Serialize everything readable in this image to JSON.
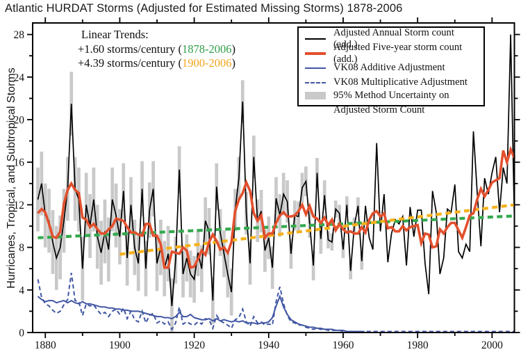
{
  "chart_data": {
    "type": "line",
    "title": "Atlantic HURDAT Storms (Adjusted for Estimated Missing Storms) 1878-2006",
    "ylabel": "Hurricanes, Tropical, and Subtropical Storms",
    "xlabel": "",
    "grid": false,
    "legend_position": "top-right",
    "x_axis": {
      "range": [
        1876.6,
        2006
      ],
      "major_ticks": [
        1880,
        1900,
        1920,
        1940,
        1960,
        1980,
        2000
      ],
      "minor_ticks": [
        1890,
        1910,
        1930,
        1950,
        1970,
        1990
      ]
    },
    "y_axis": {
      "range": [
        0,
        29.1
      ],
      "major_ticks": [
        0,
        4,
        8,
        12,
        16,
        20,
        24,
        28
      ],
      "minor_ticks": [
        2,
        6,
        10,
        14,
        18,
        22,
        26
      ]
    },
    "year_start": 1878,
    "year_end": 2006,
    "series": [
      {
        "name": "Adjusted Annual Storm count (add.)",
        "color": "#000000",
        "style": "solid",
        "width": 1.7,
        "values": [
          12.5,
          14.0,
          11.0,
          10.5,
          8.5,
          7.0,
          8.0,
          10.5,
          13.5,
          21.5,
          13.5,
          12.5,
          6.0,
          12.0,
          10.0,
          12.5,
          9.0,
          7.5,
          9.5,
          7.8,
          12.5,
          11.0,
          9.0,
          13.3,
          7.0,
          12.0,
          8.0,
          6.5,
          13.5,
          6.0,
          11.5,
          13.5,
          6.5,
          8.0,
          6.0,
          7.4,
          2.5,
          6.8,
          15.3,
          5.5,
          7.0,
          5.5,
          5.0,
          7.5,
          6.0,
          10.5,
          9.5,
          3.0,
          13.7,
          9.4,
          7.4,
          5.5,
          3.8,
          11.5,
          14.5,
          21.7,
          11.2,
          6.5,
          16.5,
          10.5,
          11.4,
          7.7,
          8.9,
          6.1,
          12.6,
          11.0,
          13.0,
          12.3,
          7.4,
          11.0,
          10.9,
          13.6,
          14.2,
          10.3,
          6.3,
          15.0,
          8.8,
          12.9,
          8.7,
          8.5,
          11.6,
          11.2,
          7.8,
          12.0,
          5.8,
          10.0,
          11.9,
          6.7,
          11.9,
          8.9,
          7.8,
          17.8,
          9.5,
          13.0,
          6.6,
          9.3,
          10.6,
          10.2,
          10.9,
          6.3,
          11.8,
          9.0,
          11.5,
          11.5,
          6.5,
          3.6,
          13.3,
          11.3,
          5.5,
          7.0,
          11.6,
          11.3,
          13.9,
          7.6,
          7.0,
          8.3,
          7.6,
          18.9,
          13.2,
          8.1,
          14.5,
          13.0,
          15.0,
          16.5,
          11.3,
          15.5,
          14.0,
          28.0,
          10.5
        ]
      },
      {
        "name": "Adjusted Five-year storm count (add.)",
        "color": "#e2502d",
        "style": "solid",
        "width": 3.6,
        "values": [
          11.2,
          11.6,
          11.3,
          10.2,
          9.0,
          8.9,
          9.5,
          12.1,
          13.4,
          14.0,
          13.4,
          13.1,
          10.8,
          10.6,
          9.9,
          10.2,
          9.7,
          9.3,
          9.3,
          9.7,
          10.0,
          10.7,
          10.6,
          10.5,
          9.9,
          9.4,
          9.4,
          9.2,
          9.1,
          10.2,
          10.2,
          9.1,
          9.1,
          8.3,
          6.1,
          6.1,
          7.6,
          7.5,
          7.4,
          8.0,
          7.7,
          6.1,
          6.2,
          6.9,
          7.7,
          7.3,
          8.5,
          9.2,
          8.6,
          7.8,
          8.0,
          7.5,
          8.5,
          11.4,
          12.5,
          13.1,
          14.1,
          13.3,
          11.2,
          10.5,
          11.0,
          8.9,
          9.3,
          9.3,
          10.3,
          11.0,
          11.3,
          10.9,
          10.9,
          11.0,
          11.4,
          12.0,
          11.1,
          11.9,
          10.9,
          10.7,
          10.3,
          10.8,
          10.1,
          10.6,
          9.6,
          10.2,
          9.7,
          9.4,
          9.5,
          9.3,
          9.3,
          9.9,
          9.4,
          10.6,
          11.2,
          11.4,
          10.9,
          11.2,
          9.8,
          9.9,
          9.5,
          9.5,
          10.0,
          9.6,
          9.9,
          10.0,
          10.1,
          8.4,
          9.3,
          9.2,
          8.0,
          8.1,
          9.7,
          9.3,
          9.9,
          10.3,
          10.3,
          9.6,
          8.9,
          9.9,
          11.0,
          11.2,
          12.5,
          13.5,
          12.8,
          13.4,
          14.1,
          14.3,
          14.5,
          17.1,
          16.0,
          17.2,
          16.4
        ]
      },
      {
        "name": "VK08 Additive Adjustment",
        "color": "#4156a4",
        "style": "solid",
        "width": 2,
        "values": [
          3.4,
          3.1,
          2.9,
          3.0,
          3.0,
          2.8,
          2.9,
          3.0,
          2.8,
          3.0,
          2.8,
          2.7,
          2.9,
          2.7,
          2.7,
          2.6,
          2.5,
          2.4,
          2.4,
          2.3,
          2.3,
          2.2,
          2.2,
          2.1,
          2.1,
          2.0,
          2.0,
          2.0,
          1.9,
          1.8,
          1.7,
          1.6,
          1.5,
          1.5,
          1.4,
          1.4,
          1.3,
          1.5,
          1.9,
          1.5,
          1.5,
          1.7,
          1.4,
          1.3,
          1.2,
          1.2,
          1.3,
          1.1,
          1.3,
          1.1,
          1.2,
          1.1,
          1.0,
          1.1,
          1.0,
          1.1,
          0.9,
          0.9,
          0.9,
          0.8,
          0.9,
          0.9,
          1.0,
          1.4,
          2.5,
          3.4,
          2.4,
          1.7,
          1.2,
          1.0,
          0.8,
          0.7,
          0.6,
          0.5,
          0.5,
          0.4,
          0.4,
          0.3,
          0.3,
          0.3,
          0.2,
          0.2,
          0.2,
          0.1,
          0.1,
          0.1,
          0.1,
          0.1,
          0,
          0,
          0,
          0,
          0,
          0,
          0,
          0,
          0,
          0,
          0,
          0,
          0,
          0,
          0,
          0,
          0,
          0,
          0,
          0,
          0,
          0,
          0,
          0,
          0,
          0,
          0,
          0,
          0,
          0,
          0,
          0,
          0,
          0,
          0,
          0,
          0,
          0,
          0,
          0,
          0
        ]
      },
      {
        "name": "VK08 Multiplicative Adjustment",
        "color": "#4156a4",
        "style": "dashed",
        "width": 2,
        "values": [
          5.0,
          3.3,
          2.7,
          2.5,
          2.1,
          1.8,
          2.0,
          2.6,
          3.1,
          5.6,
          3.0,
          2.9,
          1.6,
          2.7,
          2.5,
          2.6,
          2.1,
          1.7,
          1.9,
          1.5,
          2.0,
          2.2,
          1.7,
          2.3,
          1.3,
          2.0,
          1.2,
          1.0,
          2.0,
          0.9,
          1.6,
          1.8,
          0.9,
          1.1,
          0.8,
          1.0,
          0.3,
          0.9,
          2.4,
          0.8,
          1.0,
          0.8,
          0.7,
          1.0,
          0.8,
          1.3,
          1.2,
          0.4,
          1.6,
          1.1,
          0.9,
          0.7,
          0.4,
          1.2,
          1.4,
          2.2,
          1.0,
          0.6,
          1.5,
          0.9,
          1.0,
          0.7,
          0.8,
          0.7,
          2.9,
          4.3,
          2.7,
          1.6,
          1.0,
          0.9,
          0.7,
          0.7,
          0.5,
          0.4,
          0.3,
          0.4,
          0.3,
          0.3,
          0.2,
          0.2,
          0.2,
          0.2,
          0.1,
          0.1,
          0.1,
          0.1,
          0.1,
          0.1,
          0.1,
          0.1,
          0.1,
          0.1,
          0.1,
          0.1,
          0.1,
          0.1,
          0.1,
          0.1,
          0.1,
          0.1,
          0.1,
          0.1,
          0.1,
          0.1,
          0.1,
          0.1,
          0.1,
          0.1,
          0.1,
          0.1,
          0.1,
          0.1,
          0.1,
          0.1,
          0.1,
          0.1,
          0.1,
          0.1,
          0.1,
          0.1,
          0.1,
          0.1,
          0.1,
          0.1,
          0.1,
          0.1,
          0.1,
          0.1,
          0.1
        ]
      }
    ],
    "uncertainty": {
      "label_line1": "95% Method Uncertainty on",
      "label_line2": "Adjusted Storm Count",
      "color": "#c9c9c9",
      "applies_to_series": "Adjusted Annual Storm count (add.)",
      "half_width_eras": [
        {
          "from": 1878,
          "to": 1899,
          "half": 3.0
        },
        {
          "from": 1900,
          "to": 1914,
          "half": 2.6
        },
        {
          "from": 1915,
          "to": 1930,
          "half": 2.2
        },
        {
          "from": 1931,
          "to": 1945,
          "half": 2.0
        },
        {
          "from": 1946,
          "to": 1955,
          "half": 1.4
        },
        {
          "from": 1956,
          "to": 1965,
          "half": 0.8
        },
        {
          "from": 1966,
          "to": 2006,
          "half": 0
        }
      ]
    },
    "trend_lines": [
      {
        "period": "1878-2006",
        "rate_label": "+1.60 storms/century",
        "color": "#35a94f",
        "x": [
          1878,
          2006
        ],
        "y": [
          8.9,
          10.95
        ],
        "style": "dashed-thick"
      },
      {
        "period": "1900-2006",
        "rate_label": "+4.39 storms/century",
        "color": "#f6b11b",
        "x": [
          1900,
          2006
        ],
        "y": [
          7.35,
          12.0
        ],
        "style": "dashed-thick"
      }
    ],
    "annotation": {
      "heading": "Linear Trends:",
      "lines": [
        {
          "prefix": "+1.60 storms/century (",
          "range": "1878-2006",
          "suffix": ")",
          "range_color": "#2f9e49"
        },
        {
          "prefix": "+4.39 storms/century (",
          "range": "1900-2006",
          "suffix": ")",
          "range_color": "#f2a41e"
        }
      ]
    },
    "legend_items": [
      "Adjusted Annual Storm count (add.)",
      "Adjusted Five-year storm count (add.)",
      "VK08 Additive Adjustment",
      "VK08 Multiplicative Adjustment"
    ]
  }
}
